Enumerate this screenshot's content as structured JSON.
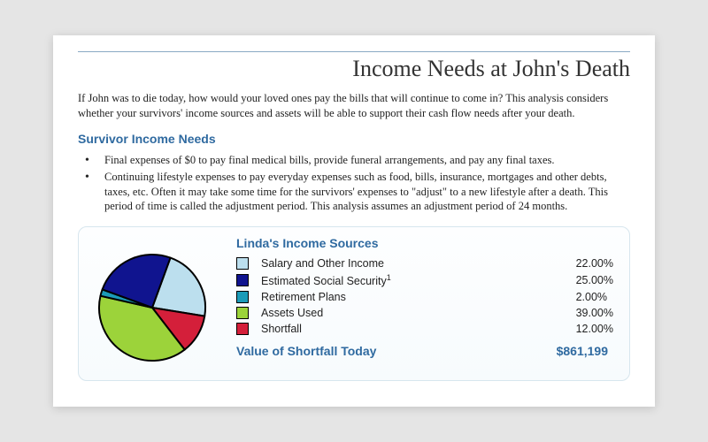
{
  "title": "Income Needs at John's Death",
  "intro": "If John was to die today, how would your loved ones pay the bills that will continue to come in?  This analysis considers whether your survivors' income sources and assets will be able to support their cash flow needs after your death.",
  "section_heading": "Survivor Income Needs",
  "bullets": [
    "Final expenses of $0 to pay final medical bills, provide funeral arrangements, and pay any final taxes.",
    "Continuing lifestyle expenses to pay everyday expenses such as food, bills, insurance, mortgages and other debts, taxes, etc. Often it may take some time for the survivors' expenses to \"adjust\" to a new lifestyle after a death.  This period of time is called the adjustment period. This analysis assumes an adjustment period of  24 months."
  ],
  "sources_heading": "Linda's Income Sources",
  "pie": {
    "type": "pie",
    "radius": 60,
    "stroke": "#000000",
    "stroke_width": 2,
    "background": "#f9fcfe",
    "slices": [
      {
        "label": "Salary and Other Income",
        "value": 22.0,
        "pct": "22.00%",
        "color": "#bcdfee",
        "footnote": ""
      },
      {
        "label": "Estimated Social Security",
        "value": 25.0,
        "pct": "25.00%",
        "color": "#10148f",
        "footnote": "1"
      },
      {
        "label": "Retirement Plans",
        "value": 2.0,
        "pct": "2.00%",
        "color": "#1b9bb8",
        "footnote": ""
      },
      {
        "label": "Assets Used",
        "value": 39.0,
        "pct": "39.00%",
        "color": "#9cd33a",
        "footnote": ""
      },
      {
        "label": "Shortfall",
        "value": 12.0,
        "pct": "12.00%",
        "color": "#d41f3a",
        "footnote": ""
      }
    ],
    "legend_font_family": "Arial",
    "legend_font_size": 12.5
  },
  "shortfall_label": "Value of Shortfall Today",
  "shortfall_value": "$861,199",
  "colors": {
    "heading": "#2f6aa0",
    "page_bg": "#ffffff",
    "outer_bg": "#e5e5e5",
    "card_border": "#d7e6ee"
  }
}
